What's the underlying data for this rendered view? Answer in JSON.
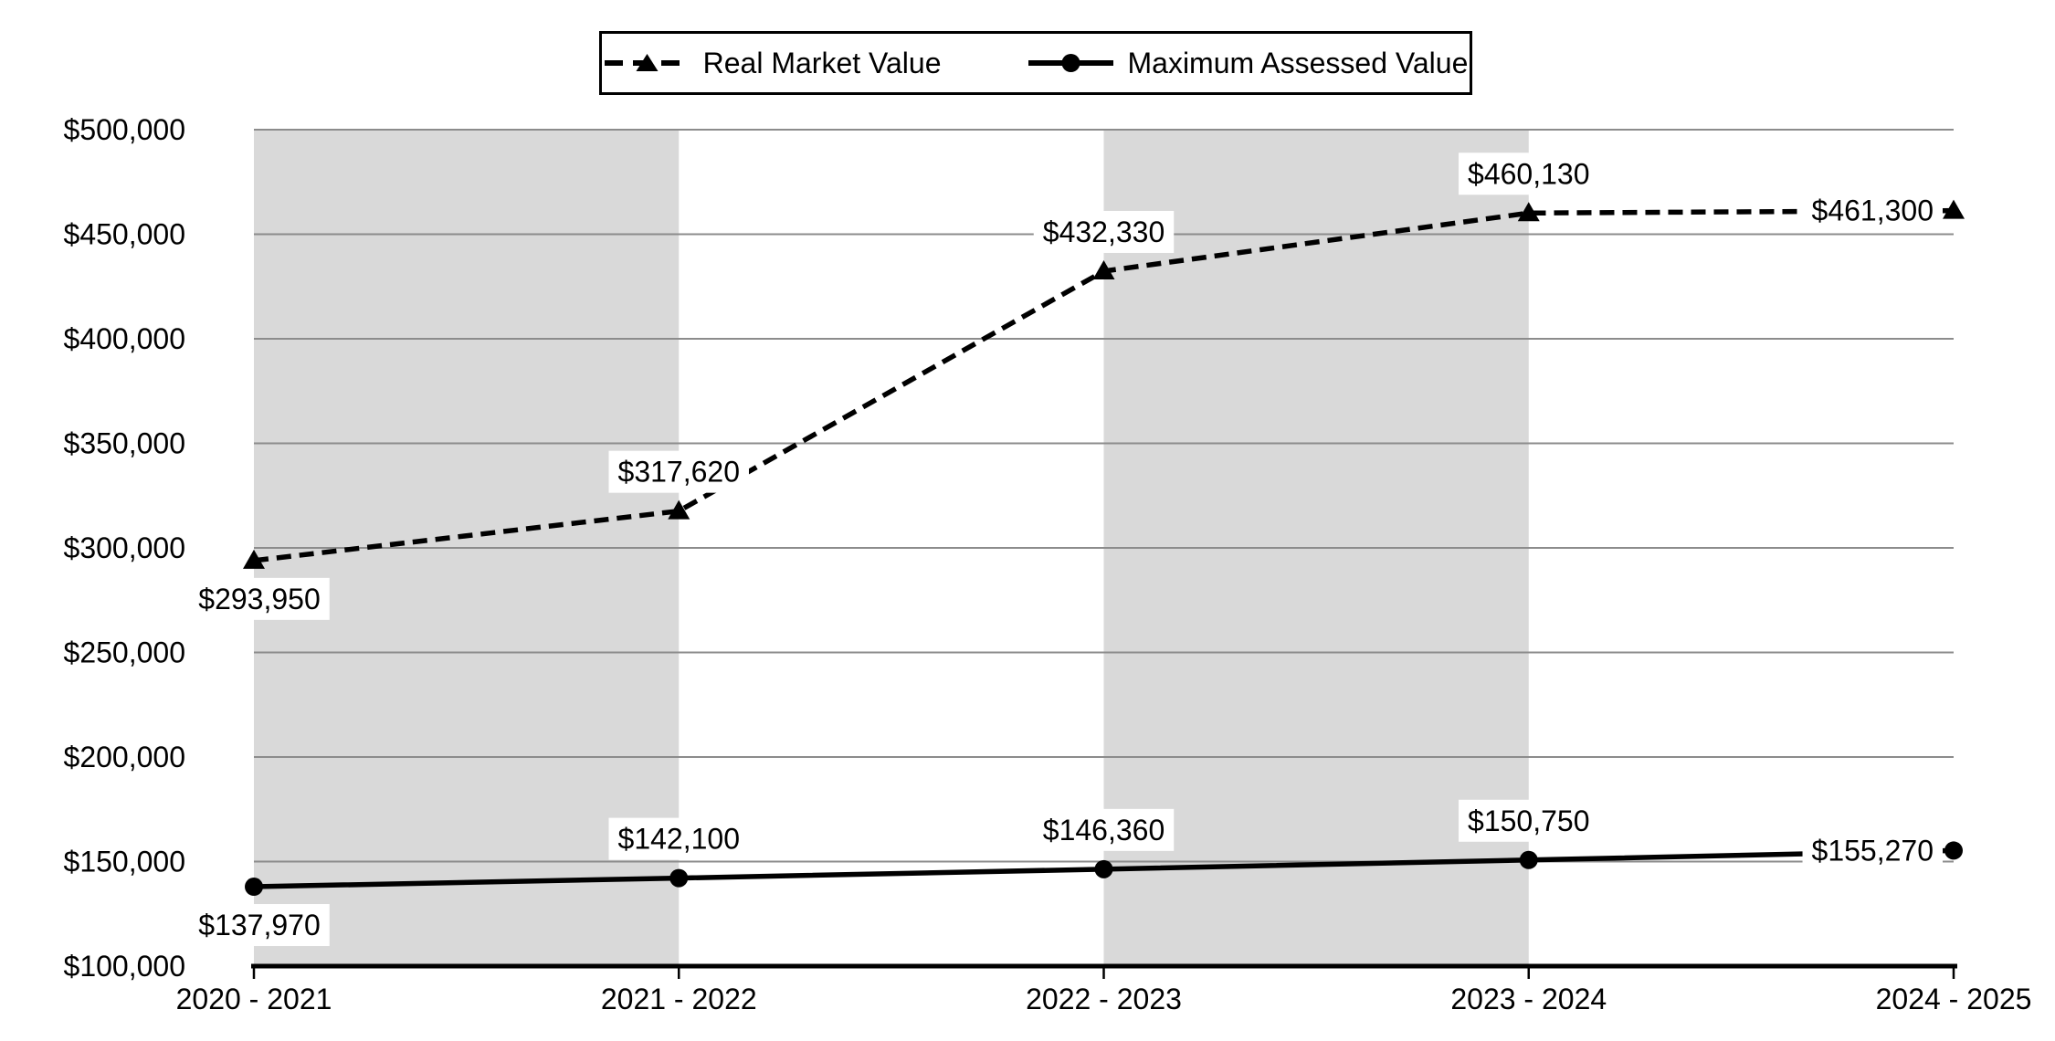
{
  "chart_data": {
    "type": "line",
    "title": "",
    "xlabel": "",
    "ylabel": "",
    "categories": [
      "2020 - 2021",
      "2021 - 2022",
      "2022 - 2023",
      "2023 - 2024",
      "2024 - 2025"
    ],
    "series": [
      {
        "name": "Real Market Value",
        "marker": "triangle",
        "line_style": "dashed",
        "values": [
          293950,
          317620,
          432330,
          460130,
          461300
        ],
        "labels": [
          "$293,950",
          "$317,620",
          "$432,330",
          "$460,130",
          "$461,300"
        ],
        "label_placement": [
          "below",
          "above",
          "above",
          "above",
          "left"
        ]
      },
      {
        "name": "Maximum Assessed Value",
        "marker": "circle",
        "line_style": "solid",
        "values": [
          137970,
          142100,
          146360,
          150750,
          155270
        ],
        "labels": [
          "$137,970",
          "$142,100",
          "$146,360",
          "$150,750",
          "$155,270"
        ],
        "label_placement": [
          "below",
          "above",
          "above",
          "above",
          "left"
        ]
      }
    ],
    "ylim": [
      100000,
      500000
    ],
    "ytick_step": 50000,
    "ytick_labels": [
      "$100,000",
      "$150,000",
      "$200,000",
      "$250,000",
      "$300,000",
      "$350,000",
      "$400,000",
      "$450,000",
      "$500,000"
    ],
    "grid": true,
    "legend_position": "top-center",
    "plot_bands": {
      "intervals": [
        [
          0,
          1
        ],
        [
          2,
          3
        ]
      ]
    }
  },
  "colors": {
    "series_line": "#000000",
    "band_fill": "#d9d9d9",
    "gridline": "#8c8c8c",
    "axis": "#000000",
    "label_background": "#ffffff",
    "text": "#000000",
    "legend_border": "#000000",
    "background": "#ffffff"
  }
}
